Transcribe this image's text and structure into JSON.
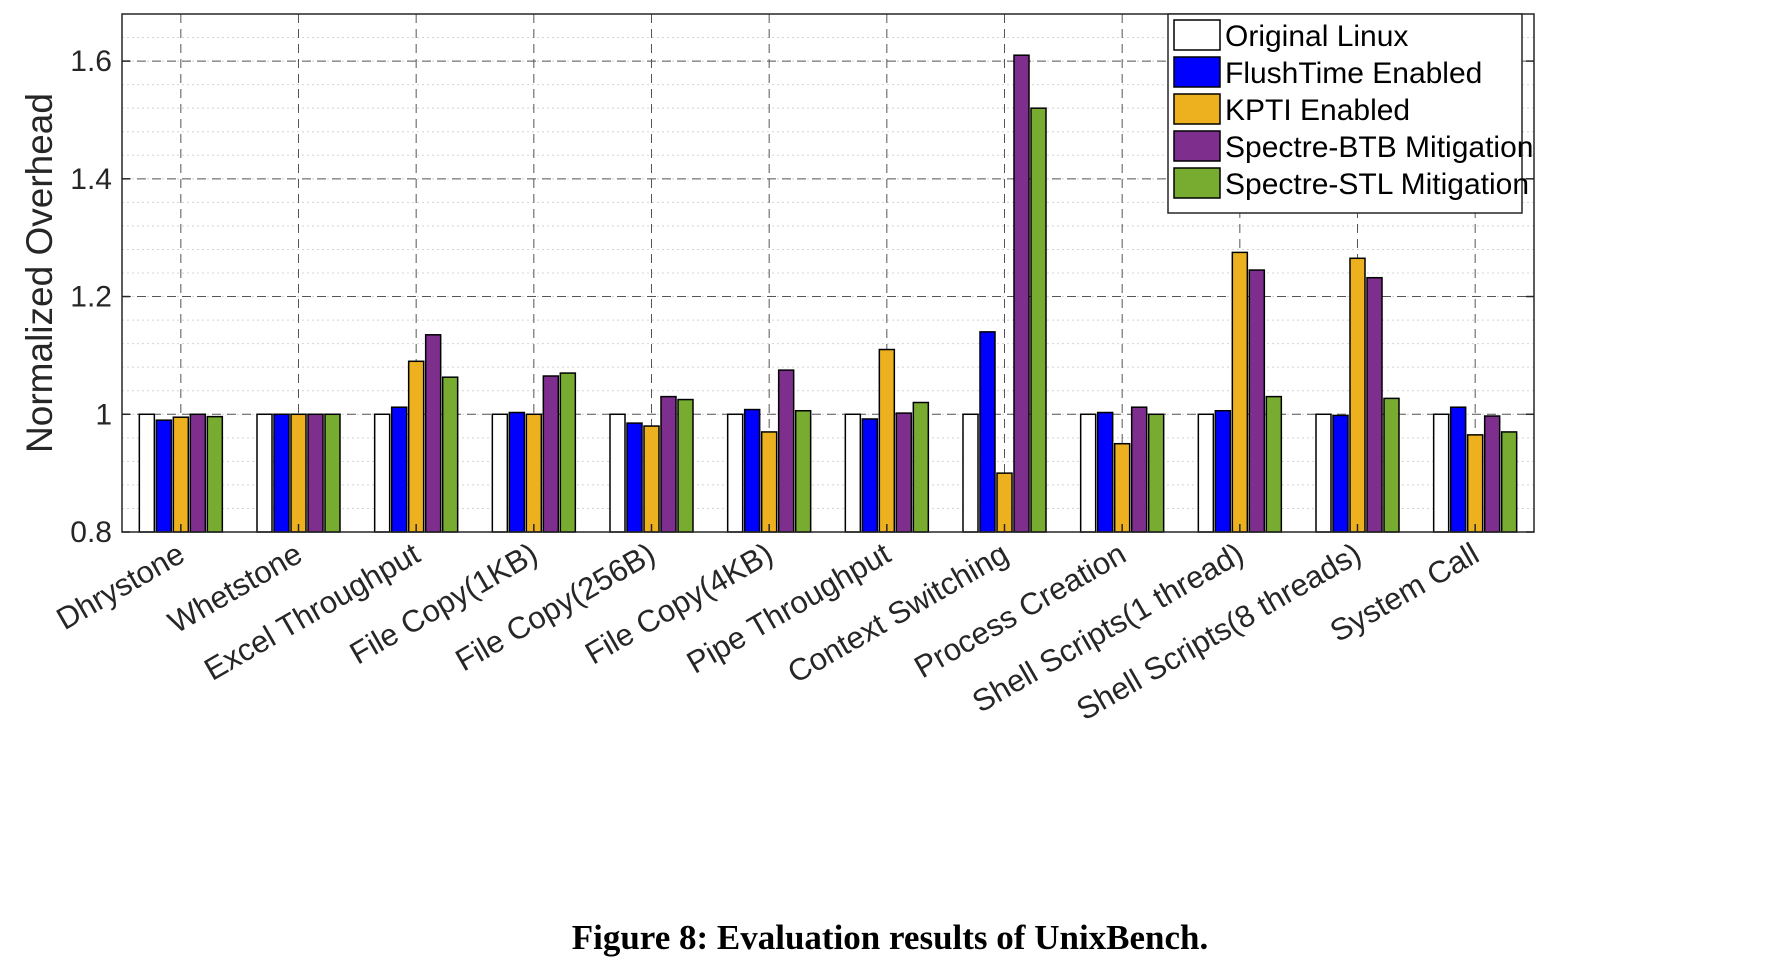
{
  "caption": "Figure 8: Evaluation results of UnixBench.",
  "chart_data": {
    "type": "bar",
    "title": "",
    "xlabel": "",
    "ylabel": "Normalized Overhead",
    "ylim": [
      0.8,
      1.68
    ],
    "yticks": [
      0.8,
      1,
      1.2,
      1.4,
      1.6
    ],
    "ytick_labels": [
      "0.8",
      "1",
      "1.2",
      "1.4",
      "1.6"
    ],
    "grid": true,
    "legend_position": "top-right",
    "categories": [
      "Dhrystone",
      "Whetstone",
      "Excel Throughput",
      "File Copy(1KB)",
      "File Copy(256B)",
      "File Copy(4KB)",
      "Pipe Throughput",
      "Context Switching",
      "Process Creation",
      "Shell Scripts(1 thread)",
      "Shell Scripts(8 threads)",
      "System Call"
    ],
    "series": [
      {
        "name": "Original Linux",
        "color": "#ffffff",
        "values": [
          1,
          1,
          1,
          1,
          1,
          1,
          1,
          1,
          1,
          1,
          1,
          1
        ]
      },
      {
        "name": "FlushTime Enabled",
        "color": "#0000ff",
        "values": [
          0.99,
          1.0,
          1.012,
          1.003,
          0.985,
          1.008,
          0.992,
          1.14,
          1.003,
          1.006,
          0.998,
          1.012
        ]
      },
      {
        "name": "KPTI Enabled",
        "color": "#edb120",
        "values": [
          0.995,
          1.0,
          1.09,
          1.0,
          0.98,
          0.97,
          1.11,
          0.9,
          0.95,
          1.275,
          1.265,
          0.965
        ]
      },
      {
        "name": "Spectre-BTB Mitigation",
        "color": "#7e2f8e",
        "values": [
          1.0,
          1.0,
          1.135,
          1.065,
          1.03,
          1.075,
          1.002,
          1.61,
          1.012,
          1.245,
          1.232,
          0.997
        ]
      },
      {
        "name": "Spectre-STL Mitigation",
        "color": "#77ac30",
        "values": [
          0.996,
          1.0,
          1.063,
          1.07,
          1.025,
          1.006,
          1.02,
          1.52,
          1.0,
          1.03,
          1.027,
          0.97
        ]
      }
    ]
  }
}
